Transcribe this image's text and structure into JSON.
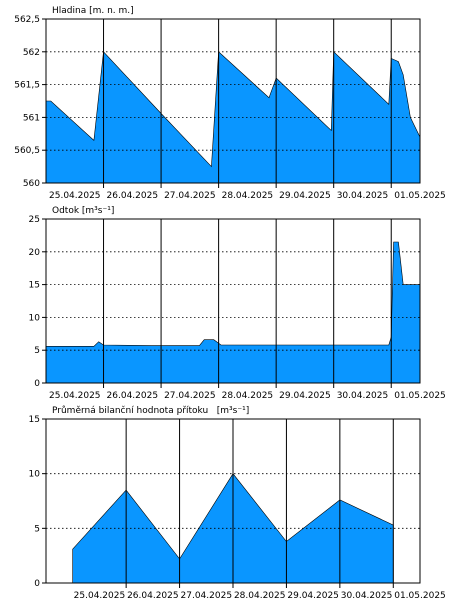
{
  "chart_data": [
    {
      "type": "area",
      "title": "Hladina [m. n. m.]",
      "x_tick_labels": [
        "25.04.2025",
        "26.04.2025",
        "27.04.2025",
        "28.04.2025",
        "29.04.2025",
        "30.04.2025",
        "01.05.2025"
      ],
      "x_start": "2025-04-25 00:00",
      "x_end": "2025-05-01 12:00",
      "y_ticks": [
        560,
        560.5,
        561,
        561.5,
        562,
        562.5
      ],
      "y_tick_labels": [
        "560",
        "560,5",
        "561",
        "561,5",
        "562",
        "562,5"
      ],
      "ylim": [
        560,
        562.5
      ],
      "fill_color": "#0A96FF",
      "grid": "dotted horizontal, solid vertical at midnight",
      "points": [
        [
          "2025-04-25 00:00",
          561.25
        ],
        [
          "2025-04-25 02:00",
          561.25
        ],
        [
          "2025-04-25 20:00",
          560.65
        ],
        [
          "2025-04-26 00:00",
          562.0
        ],
        [
          "2025-04-27 00:00",
          561.06
        ],
        [
          "2025-04-27 21:00",
          560.25
        ],
        [
          "2025-04-28 00:00",
          562.0
        ],
        [
          "2025-04-28 21:00",
          561.3
        ],
        [
          "2025-04-29 00:00",
          561.6
        ],
        [
          "2025-04-29 23:00",
          560.8
        ],
        [
          "2025-04-30 00:00",
          562.0
        ],
        [
          "2025-04-30 23:00",
          561.2
        ],
        [
          "2025-05-01 00:00",
          561.9
        ],
        [
          "2025-05-01 03:00",
          561.85
        ],
        [
          "2025-05-01 05:00",
          561.65
        ],
        [
          "2025-05-01 08:00",
          561.0
        ],
        [
          "2025-05-01 12:00",
          560.7
        ]
      ]
    },
    {
      "type": "area",
      "title": "Odtok [m³s⁻¹]",
      "x_tick_labels": [
        "25.04.2025",
        "26.04.2025",
        "27.04.2025",
        "28.04.2025",
        "29.04.2025",
        "30.04.2025",
        "01.05.2025"
      ],
      "x_start": "2025-04-25 00:00",
      "x_end": "2025-05-01 12:00",
      "y_ticks": [
        0,
        5,
        10,
        15,
        20,
        25
      ],
      "y_tick_labels": [
        "0",
        "5",
        "10",
        "15",
        "20",
        "25"
      ],
      "ylim": [
        0,
        25
      ],
      "fill_color": "#0A96FF",
      "grid": "dotted horizontal, solid vertical at midnight",
      "points": [
        [
          "2025-04-25 00:00",
          5.6
        ],
        [
          "2025-04-25 20:00",
          5.6
        ],
        [
          "2025-04-25 22:00",
          6.3
        ],
        [
          "2025-04-26 00:00",
          5.8
        ],
        [
          "2025-04-26 20:00",
          5.7
        ],
        [
          "2025-04-27 16:00",
          5.7
        ],
        [
          "2025-04-27 18:00",
          6.6
        ],
        [
          "2025-04-27 22:00",
          6.6
        ],
        [
          "2025-04-28 01:00",
          5.8
        ],
        [
          "2025-04-30 23:00",
          5.8
        ],
        [
          "2025-05-01 00:00",
          7.0
        ],
        [
          "2025-05-01 01:00",
          21.5
        ],
        [
          "2025-05-01 03:00",
          21.5
        ],
        [
          "2025-05-01 05:00",
          15.0
        ],
        [
          "2025-05-01 12:00",
          15.0
        ]
      ]
    },
    {
      "type": "area",
      "title": "Průměrná bilanční hodnota přítoku   [m³s⁻¹]",
      "x_tick_labels": [
        "25.04.2025",
        "26.04.2025",
        "27.04.2025",
        "28.04.2025",
        "29.04.2025",
        "30.04.2025",
        "01.05.2025"
      ],
      "x_start": "2025-04-24 12:00",
      "x_end": "2025-05-01 12:00",
      "y_ticks": [
        0,
        5,
        10,
        15
      ],
      "y_tick_labels": [
        "0",
        "5",
        "10",
        "15"
      ],
      "ylim": [
        0,
        15
      ],
      "fill_color": "#0A96FF",
      "grid": "dotted horizontal, solid vertical at midnight",
      "points": [
        [
          "2025-04-25 00:00",
          3.1
        ],
        [
          "2025-04-26 00:00",
          8.5
        ],
        [
          "2025-04-27 00:00",
          2.2
        ],
        [
          "2025-04-28 00:00",
          10.0
        ],
        [
          "2025-04-29 00:00",
          3.8
        ],
        [
          "2025-04-30 00:00",
          7.6
        ],
        [
          "2025-05-01 00:00",
          5.3
        ]
      ]
    }
  ]
}
